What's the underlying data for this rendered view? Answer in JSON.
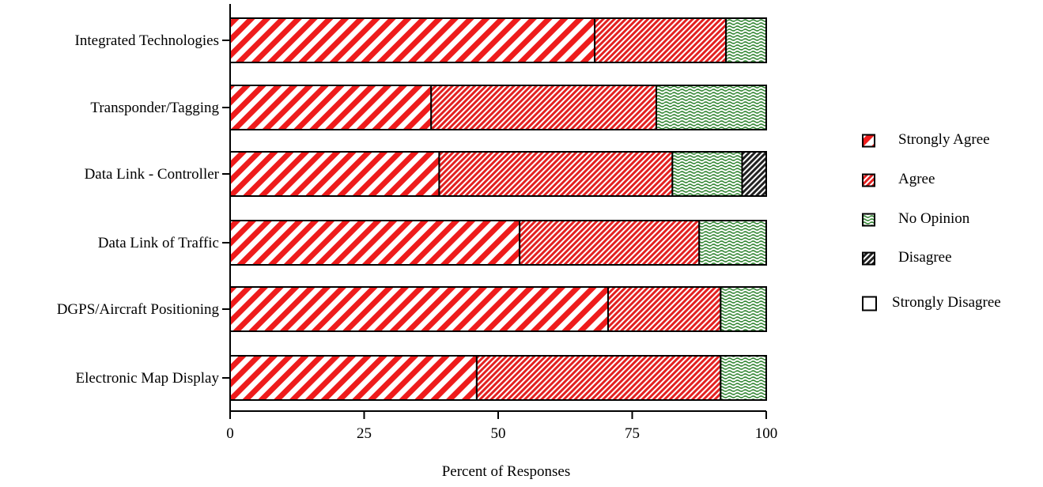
{
  "chart_data": {
    "type": "bar",
    "orientation": "horizontal",
    "stacked": true,
    "title": "",
    "xlabel": "Percent of Responses",
    "ylabel": "",
    "xlim": [
      0,
      100
    ],
    "xticks": [
      0,
      25,
      50,
      75,
      100
    ],
    "grid": false,
    "legend_position": "right",
    "categories": [
      "Integrated Technologies",
      "Transponder/Tagging",
      "Data Link - Controller",
      "Data Link of Traffic",
      "DGPS/Aircraft Positioning",
      "Electronic Map Display"
    ],
    "series": [
      {
        "name": "Strongly Agree",
        "pattern": "diagonal-stripes",
        "color": "#ee1c1c",
        "values": [
          68,
          37.5,
          39,
          54,
          70.5,
          46
        ]
      },
      {
        "name": "Agree",
        "pattern": "fine-crosshatch",
        "color": "#e32121",
        "values": [
          24.5,
          42,
          43.5,
          33.5,
          21,
          45.5
        ]
      },
      {
        "name": "No Opinion",
        "pattern": "wavy",
        "color": "#3a8a3a",
        "values": [
          7.5,
          20.5,
          13,
          12.5,
          8.5,
          8.5
        ]
      },
      {
        "name": "Disagree",
        "pattern": "dark-diagonal",
        "color": "#222222",
        "values": [
          0,
          0,
          4.5,
          0,
          0,
          0
        ]
      },
      {
        "name": "Strongly Disagree",
        "pattern": "empty",
        "color": "#ffffff",
        "values": [
          0,
          0,
          0,
          0,
          0,
          0
        ]
      }
    ]
  }
}
